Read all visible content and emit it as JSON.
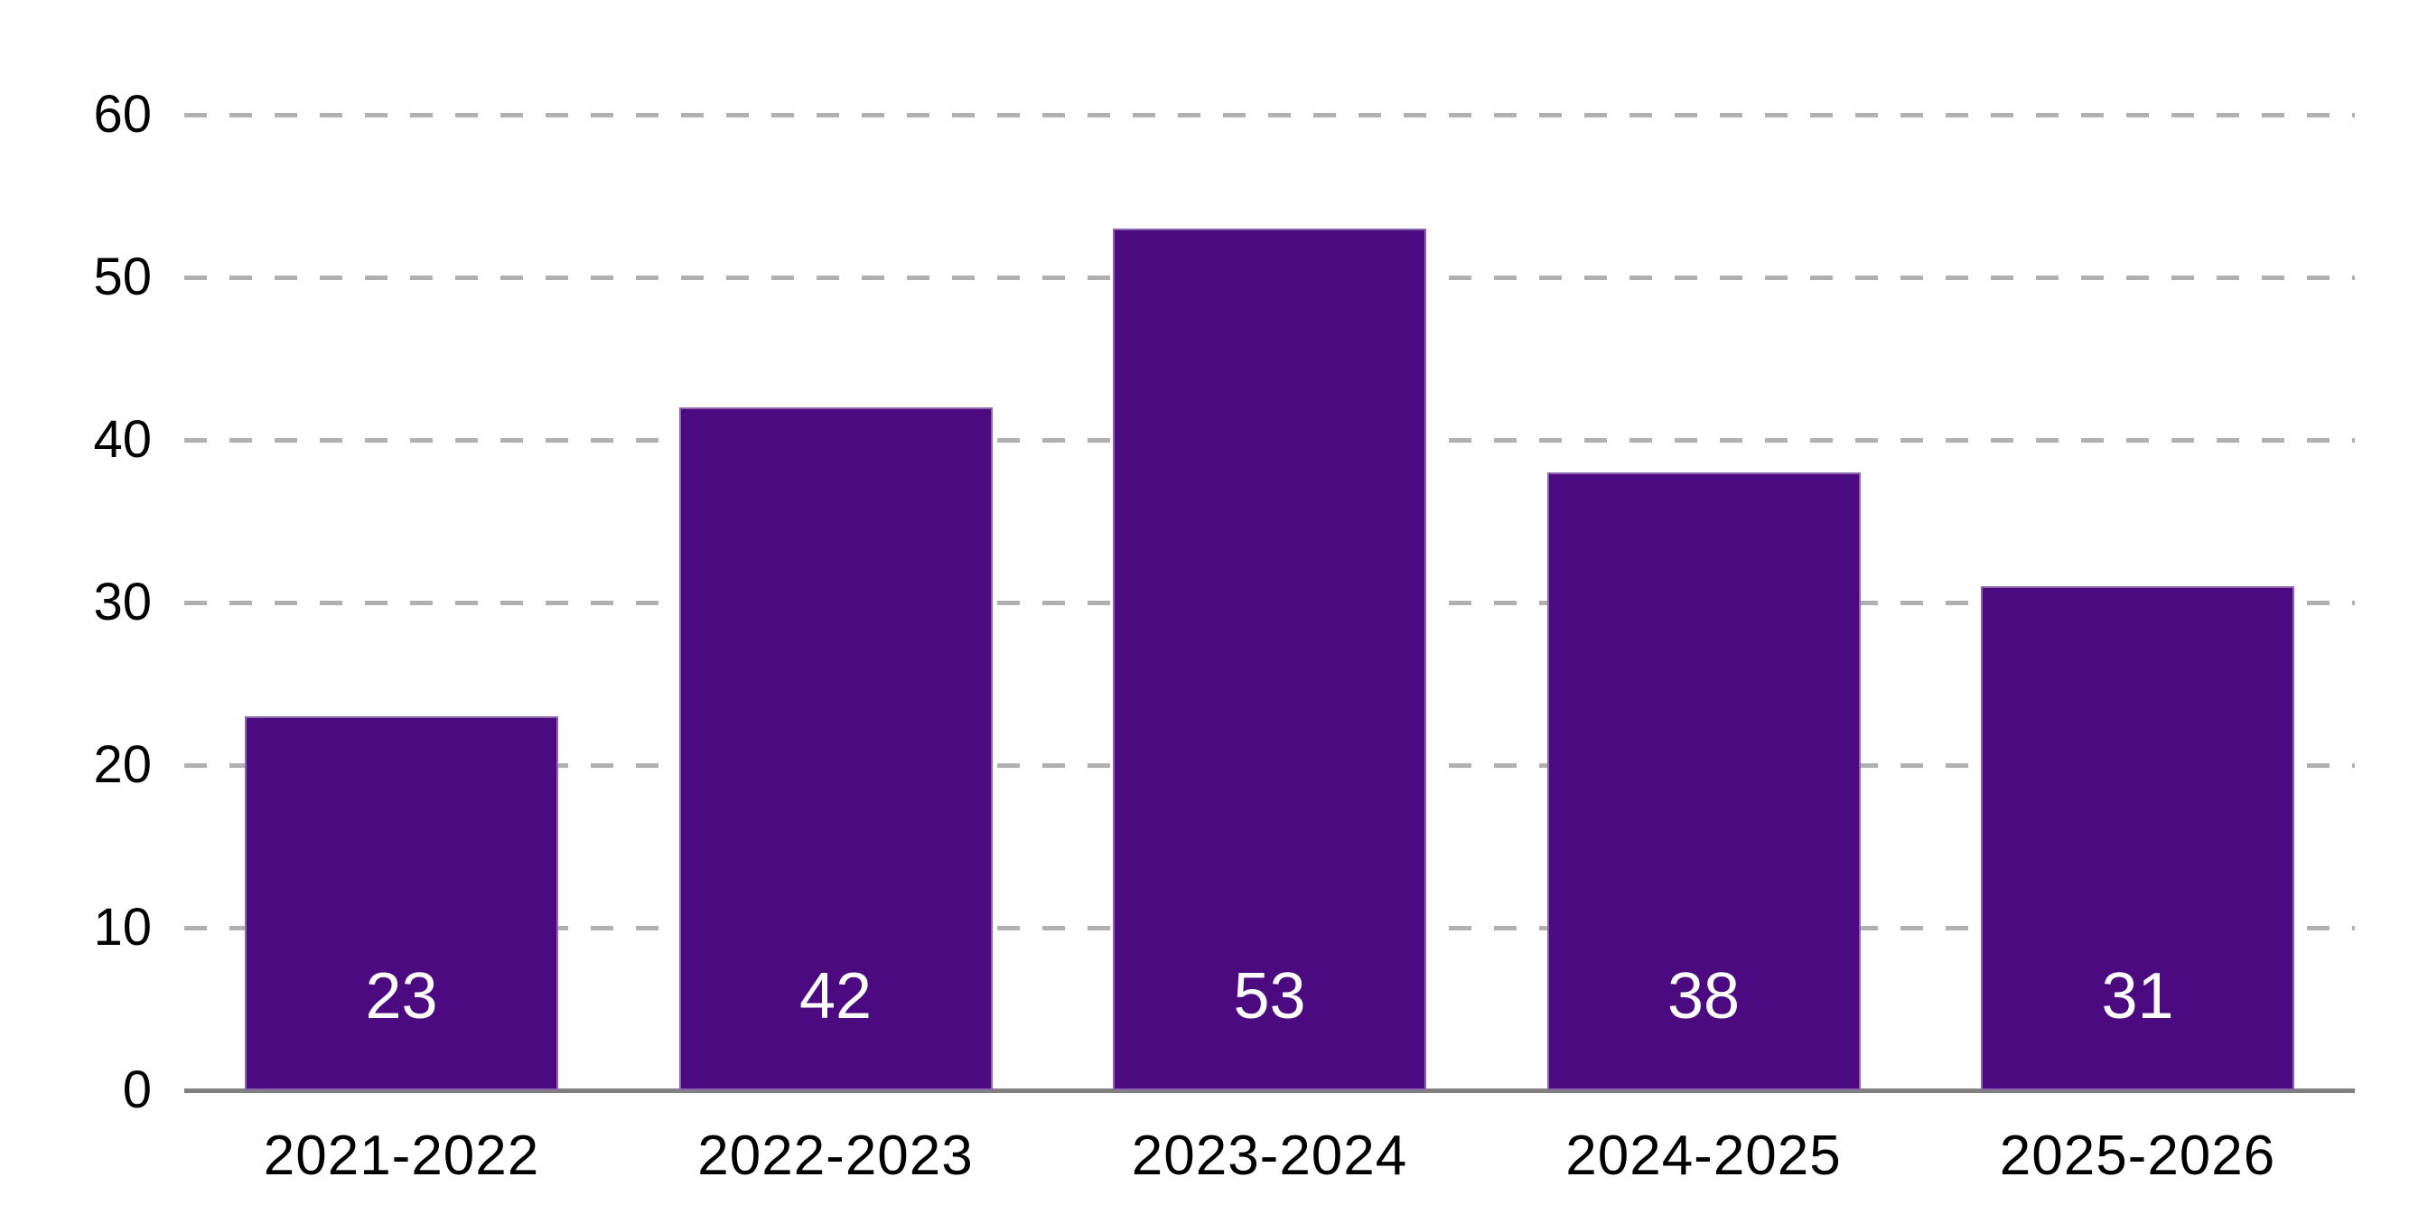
{
  "chart_data": {
    "type": "bar",
    "title": "",
    "xlabel": "",
    "ylabel": "",
    "categories": [
      "2021-2022",
      "2022-2023",
      "2023-2024",
      "2024-2025",
      "2025-2026"
    ],
    "values": [
      23,
      42,
      53,
      38,
      31
    ],
    "bar_labels": [
      "23",
      "42",
      "53",
      "38",
      "31"
    ],
    "y_ticks": [
      0,
      10,
      20,
      30,
      40,
      50,
      60
    ],
    "ylim": [
      0,
      66
    ],
    "grid": {
      "horizontal": true,
      "vertical": false,
      "style": "dashed"
    },
    "legend": "none",
    "bar_label_position": "inside-bottom",
    "colors": {
      "background": "#FFFFFF",
      "bar": "#4B0A7F",
      "bar_edge": "#E1D4EE",
      "gridline": "#B0B0B0",
      "axis_line": "#808080",
      "tick_text": "#000000",
      "category_text": "#000000",
      "bar_label_text": "#FFFFFF"
    }
  }
}
